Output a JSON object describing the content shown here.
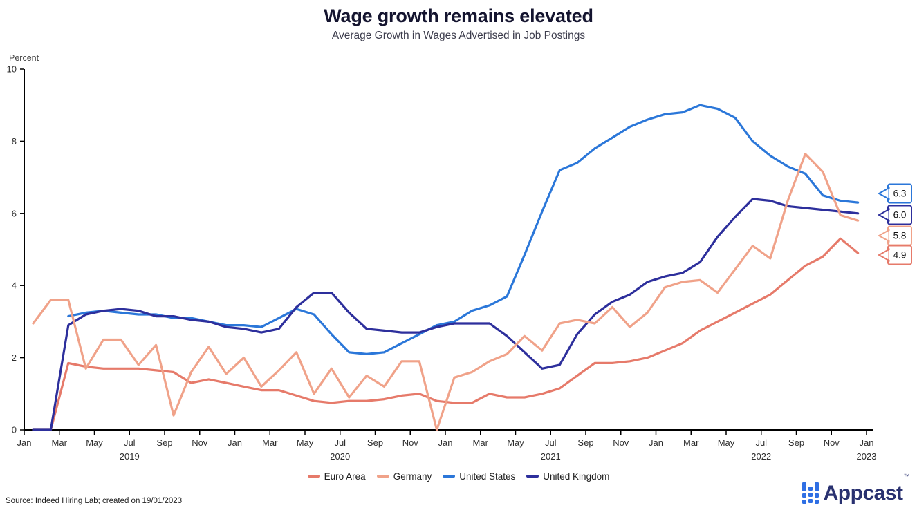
{
  "title": "Wage growth remains elevated",
  "subtitle": "Average Growth in Wages Advertised in Job Postings",
  "footer": {
    "source": "Source: Indeed Hiring Lab; created on 19/01/2023",
    "brand": "Appcast",
    "brand_tm": "™"
  },
  "brand_color": "#2f6fe4",
  "chart_data": {
    "type": "line",
    "title": "Wage growth remains elevated",
    "subtitle": "Average Growth in Wages Advertised in Job Postings",
    "ylabel": "Percent",
    "ylim": [
      0,
      10
    ],
    "yticks": [
      0,
      2,
      4,
      6,
      8,
      10
    ],
    "grid": false,
    "legend_position": "bottom",
    "x_start": "Jan 2019",
    "x_end": "Dec 2022",
    "x_tick_labels": [
      "Jan",
      "Mar",
      "May",
      "Jul",
      "Sep",
      "Nov",
      "Jan",
      "Mar",
      "May",
      "Jul",
      "Sep",
      "Nov",
      "Jan",
      "Mar",
      "May",
      "Jul",
      "Sep",
      "Nov",
      "Jan",
      "Mar",
      "May",
      "Jul",
      "Sep",
      "Nov",
      "Jan"
    ],
    "year_labels": [
      {
        "text": "2019",
        "m": 6
      },
      {
        "text": "2020",
        "m": 18
      },
      {
        "text": "2021",
        "m": 30
      },
      {
        "text": "2022",
        "m": 42
      },
      {
        "text": "2023",
        "m": 48
      }
    ],
    "series": [
      {
        "name": "Euro Area",
        "color": "#e67a6a",
        "values": [
          0,
          0,
          1.85,
          1.75,
          1.7,
          1.7,
          1.7,
          1.65,
          1.6,
          1.3,
          1.4,
          1.3,
          1.2,
          1.1,
          1.1,
          0.95,
          0.8,
          0.75,
          0.8,
          0.8,
          0.85,
          0.95,
          1.0,
          0.8,
          0.75,
          0.75,
          1.0,
          0.9,
          0.9,
          1.0,
          1.15,
          1.5,
          1.85,
          1.85,
          1.9,
          2.0,
          2.2,
          2.4,
          2.75,
          3.0,
          3.25,
          3.5,
          3.75,
          4.15,
          4.55,
          4.8,
          5.3,
          4.9
        ]
      },
      {
        "name": "Germany",
        "color": "#f0a289",
        "values": [
          2.95,
          3.6,
          3.6,
          1.7,
          2.5,
          2.5,
          1.8,
          2.35,
          0.4,
          1.6,
          2.3,
          1.55,
          2.0,
          1.2,
          1.65,
          2.15,
          1.0,
          1.7,
          0.9,
          1.5,
          1.2,
          1.9,
          1.9,
          0.0,
          1.45,
          1.6,
          1.9,
          2.1,
          2.6,
          2.2,
          2.95,
          3.05,
          2.95,
          3.4,
          2.85,
          3.25,
          3.95,
          4.1,
          4.15,
          3.8,
          4.45,
          5.1,
          4.75,
          6.35,
          7.65,
          7.15,
          5.95,
          5.8
        ]
      },
      {
        "name": "United States",
        "color": "#2b77d9",
        "values": [
          null,
          null,
          3.15,
          3.25,
          3.3,
          3.25,
          3.2,
          3.2,
          3.1,
          3.1,
          3.0,
          2.9,
          2.9,
          2.85,
          3.1,
          3.35,
          3.2,
          2.65,
          2.15,
          2.1,
          2.15,
          2.4,
          2.65,
          2.9,
          3.0,
          3.3,
          3.45,
          3.7,
          4.85,
          6.05,
          7.2,
          7.4,
          7.8,
          8.1,
          8.4,
          8.6,
          8.75,
          8.8,
          9.0,
          8.9,
          8.65,
          8.0,
          7.6,
          7.3,
          7.1,
          6.5,
          6.35,
          6.3
        ]
      },
      {
        "name": "United Kingdom",
        "color": "#2d2f9c",
        "values": [
          0,
          0,
          2.9,
          3.2,
          3.3,
          3.35,
          3.3,
          3.15,
          3.15,
          3.05,
          3.0,
          2.85,
          2.8,
          2.7,
          2.8,
          3.4,
          3.8,
          3.8,
          3.25,
          2.8,
          2.75,
          2.7,
          2.7,
          2.85,
          2.95,
          2.95,
          2.95,
          2.6,
          2.15,
          1.7,
          1.8,
          2.65,
          3.2,
          3.55,
          3.75,
          4.1,
          4.25,
          4.35,
          4.65,
          5.35,
          5.9,
          6.4,
          6.35,
          6.2,
          6.15,
          6.1,
          6.05,
          6.0
        ]
      }
    ],
    "end_labels": [
      {
        "text": "6.3",
        "series": 2
      },
      {
        "text": "6.0",
        "series": 3
      },
      {
        "text": "5.8",
        "series": 1
      },
      {
        "text": "4.9",
        "series": 0
      }
    ]
  }
}
